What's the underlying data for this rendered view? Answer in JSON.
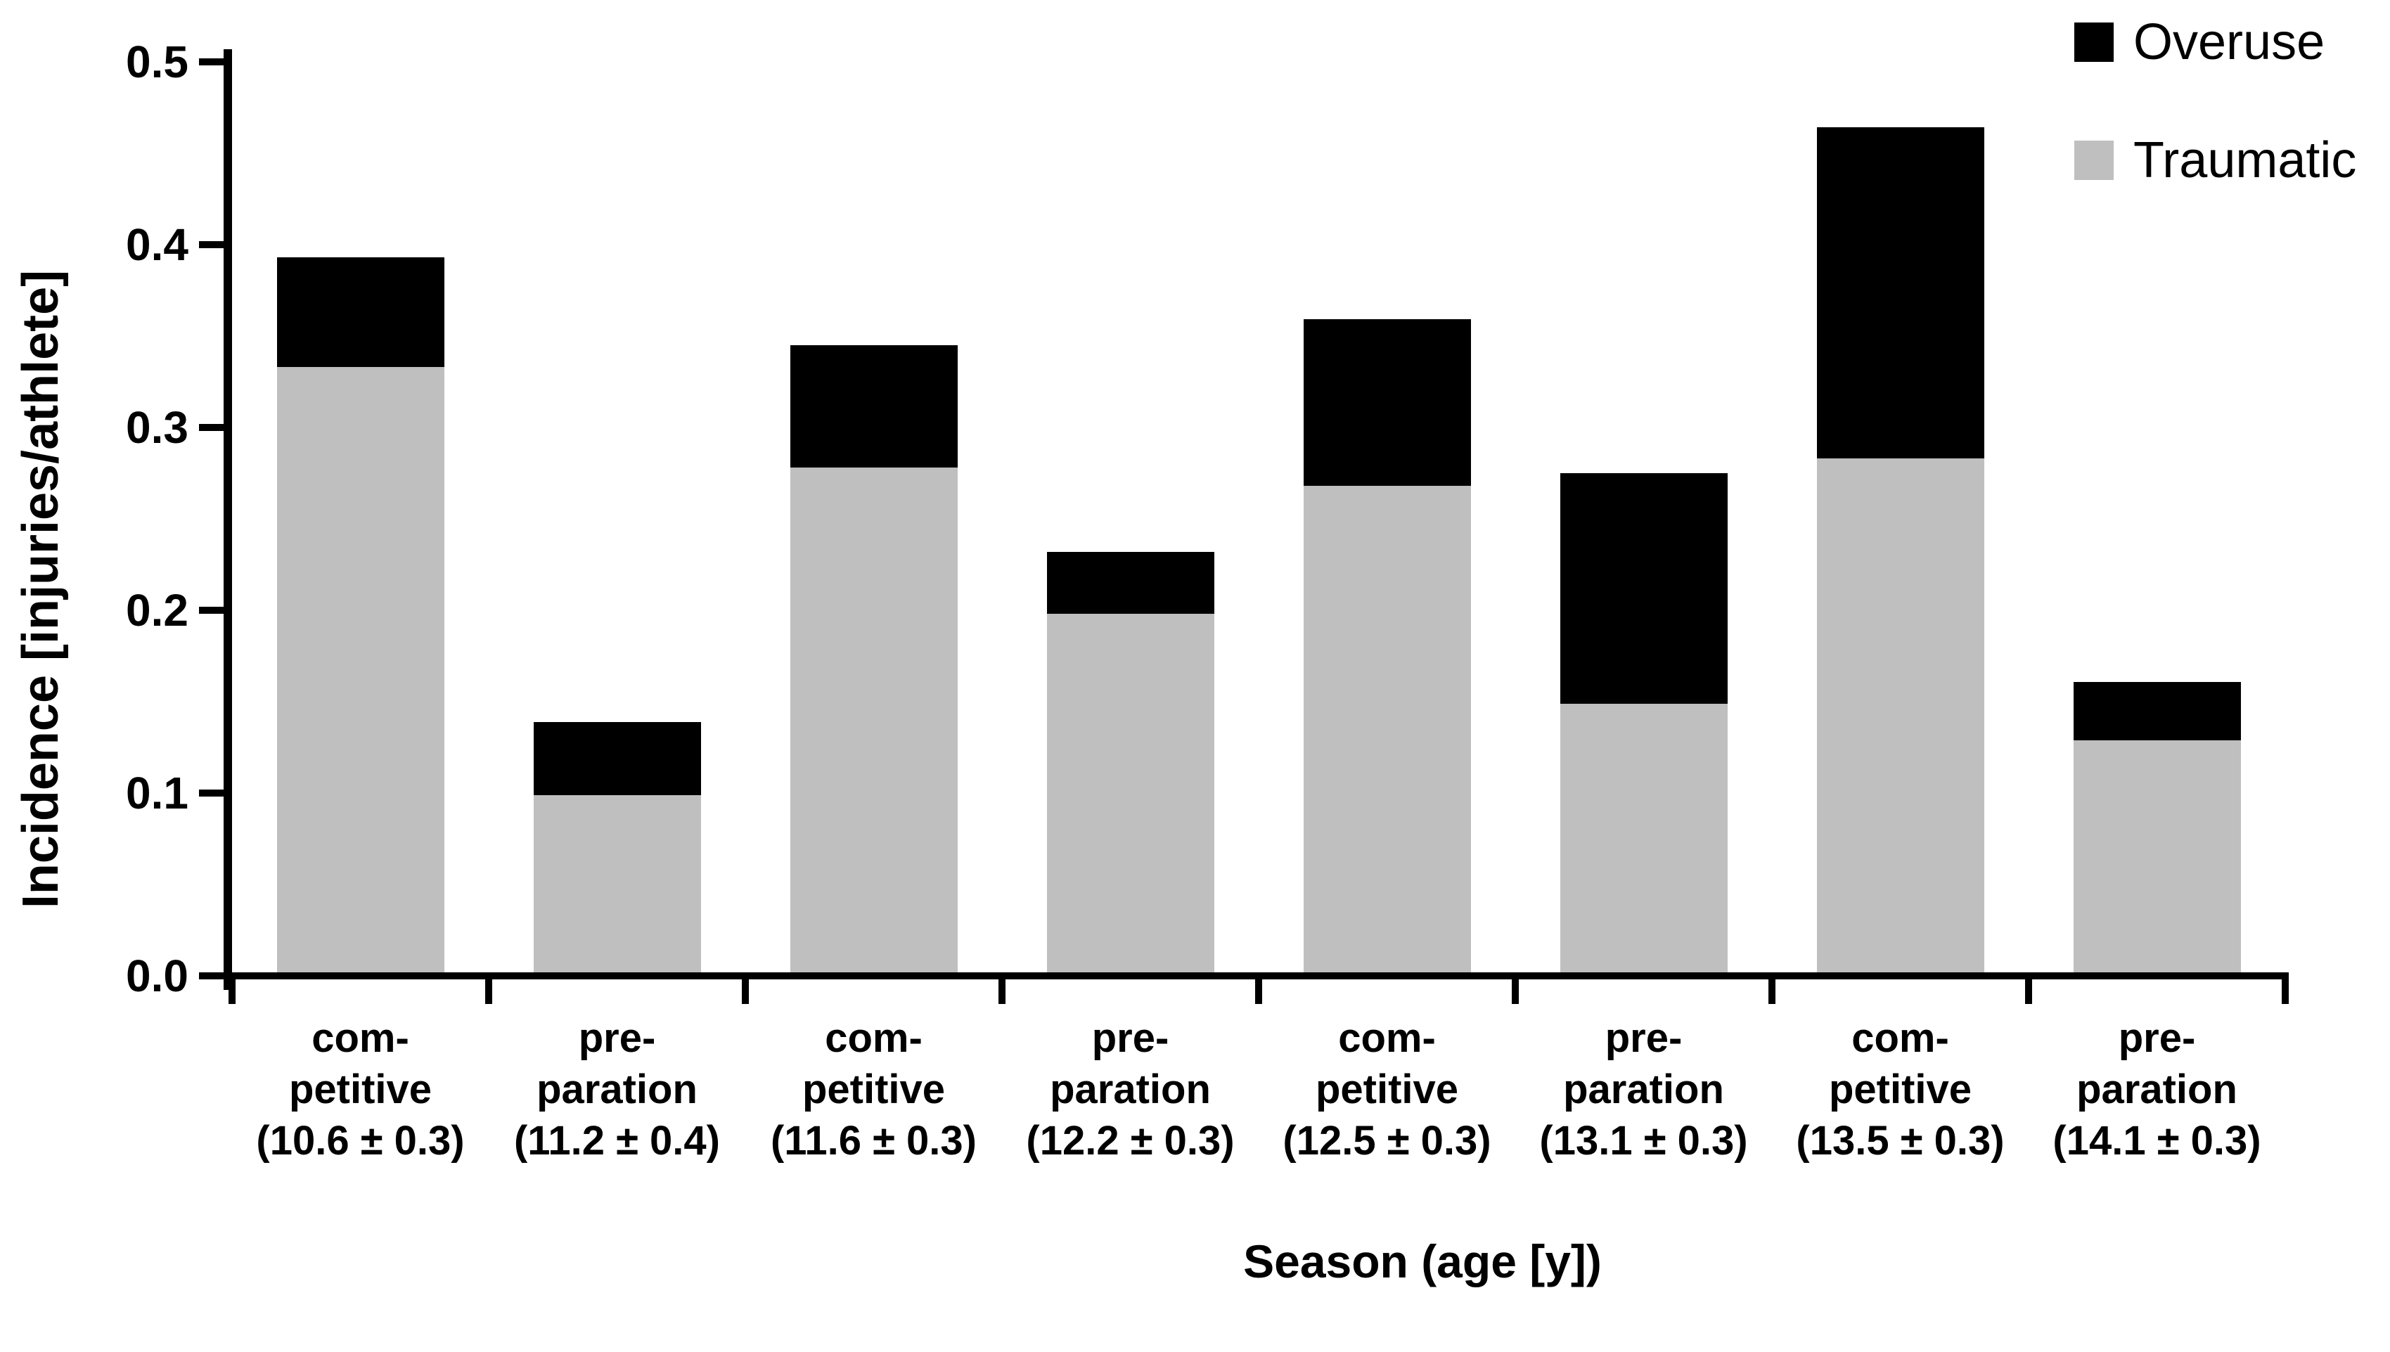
{
  "figure": {
    "background": "#ffffff",
    "legend": [
      {
        "label": "Overuse",
        "color": "#000000"
      },
      {
        "label": "Traumatic",
        "color": "#BFBFBF"
      }
    ]
  },
  "chart_data": {
    "type": "bar",
    "stacked": true,
    "title": "",
    "xlabel": "Season (age [y])",
    "ylabel": "Incidence [injuries/athlete]",
    "ylim": [
      0,
      0.5
    ],
    "ytick_step": 0.1,
    "ytick_labels": [
      "0.0",
      "0.1",
      "0.2",
      "0.3",
      "0.4",
      "0.5"
    ],
    "grid": false,
    "legend_position": "top-right",
    "categories": [
      {
        "lines": [
          "com-",
          "petitive",
          "(10.6 ± 0.3)"
        ]
      },
      {
        "lines": [
          "pre-",
          "paration",
          "(11.2 ± 0.4)"
        ]
      },
      {
        "lines": [
          "com-",
          "petitive",
          "(11.6 ± 0.3)"
        ]
      },
      {
        "lines": [
          "pre-",
          "paration",
          "(12.2 ± 0.3)"
        ]
      },
      {
        "lines": [
          "com-",
          "petitive",
          "(12.5 ± 0.3)"
        ]
      },
      {
        "lines": [
          "pre-",
          "paration",
          "(13.1 ± 0.3)"
        ]
      },
      {
        "lines": [
          "com-",
          "petitive",
          "(13.5 ± 0.3)"
        ]
      },
      {
        "lines": [
          "pre-",
          "paration",
          "(14.1 ± 0.3)"
        ]
      }
    ],
    "series": [
      {
        "name": "Traumatic",
        "color": "#BFBFBF",
        "values": [
          0.331,
          0.097,
          0.276,
          0.196,
          0.266,
          0.147,
          0.281,
          0.127
        ]
      },
      {
        "name": "Overuse",
        "color": "#000000",
        "values": [
          0.06,
          0.04,
          0.067,
          0.034,
          0.091,
          0.126,
          0.181,
          0.032
        ]
      }
    ],
    "stacked_totals": [
      0.391,
      0.137,
      0.343,
      0.23,
      0.357,
      0.273,
      0.462,
      0.159
    ]
  }
}
